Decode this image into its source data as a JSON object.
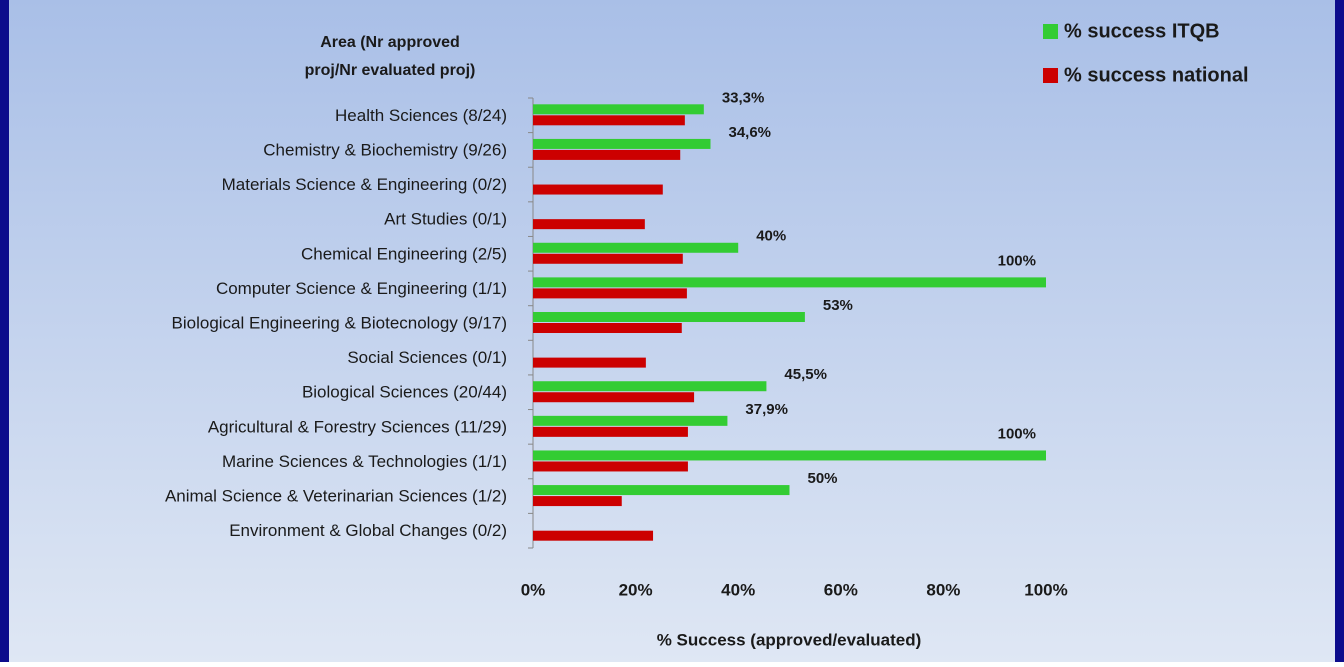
{
  "chart_data": {
    "type": "barh",
    "y_label_lines": [
      "Area (Nr approved",
      "proj/Nr evaluated proj)"
    ],
    "x_label": "% Success (approved/evaluated)",
    "categories": [
      "Health Sciences (8/24)",
      "Chemistry & Biochemistry (9/26)",
      "Materials Science & Engineering (0/2)",
      "Art Studies (0/1)",
      "Chemical Engineering (2/5)",
      "Computer Science & Engineering (1/1)",
      "Biological Engineering & Biotecnology (9/17)",
      "Social Sciences (0/1)",
      "Biological Sciences (20/44)",
      "Agricultural & Forestry Sciences (11/29)",
      "Marine Sciences & Technologies (1/1)",
      "Animal Science & Veterinarian Sciences (1/2)",
      "Environment & Global Changes (0/2)"
    ],
    "series": [
      {
        "name": "% success ITQB",
        "color": "#33cc33",
        "values": [
          33.3,
          34.6,
          0,
          0,
          40,
          100,
          53,
          0,
          45.5,
          37.9,
          100,
          50,
          0
        ],
        "value_labels": [
          "33,3%",
          "34,6%",
          null,
          null,
          "40%",
          "100%",
          "53%",
          null,
          "45,5%",
          "37,9%",
          "100%",
          "50%",
          null
        ]
      },
      {
        "name": "% success national",
        "color": "#cc0000",
        "values": [
          29.6,
          28.7,
          25.3,
          21.8,
          29.2,
          30.0,
          29.0,
          22.0,
          31.4,
          30.2,
          30.2,
          17.3,
          23.4
        ]
      }
    ],
    "xlim": [
      0,
      100
    ],
    "xticks": [
      {
        "value": 0,
        "label": "0%"
      },
      {
        "value": 20,
        "label": "20%"
      },
      {
        "value": 40,
        "label": "40%"
      },
      {
        "value": 60,
        "label": "60%"
      },
      {
        "value": 80,
        "label": "80%"
      },
      {
        "value": 100,
        "label": "100%"
      }
    ],
    "legend": "top-right"
  }
}
